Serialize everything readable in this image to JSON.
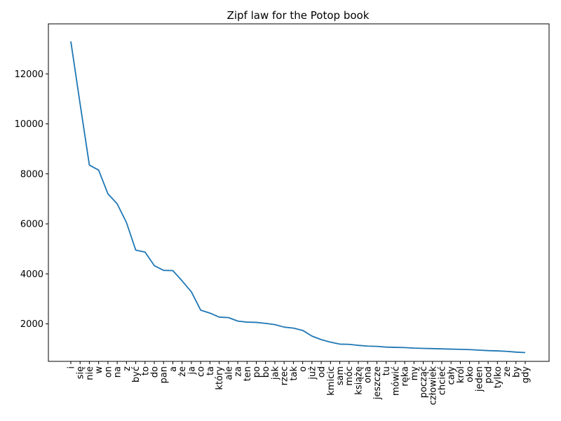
{
  "chart_data": {
    "type": "line",
    "title": "Zipf law for the Potop book",
    "xlabel": "",
    "ylabel": "",
    "categories": [
      "i",
      "się",
      "nie",
      "w",
      "on",
      "na",
      "z",
      "być",
      "to",
      "do",
      "pan",
      "a",
      "że",
      "ja",
      "co",
      "ta",
      "który",
      "ale",
      "za",
      "ten",
      "po",
      "bo",
      "jak",
      "rzec",
      "tak",
      "o",
      "już",
      "od",
      "kmicic",
      "sam",
      "móc",
      "książę",
      "ona",
      "jeszcze",
      "tu",
      "mówić",
      "ręka",
      "my",
      "począć",
      "człowiek",
      "chcieć",
      "cały",
      "król",
      "oko",
      "jeden",
      "pod",
      "tylko",
      "ze",
      "by",
      "gdy"
    ],
    "values": [
      13300,
      10800,
      8350,
      8150,
      7200,
      6800,
      6050,
      4950,
      4870,
      4330,
      4140,
      4130,
      3720,
      3280,
      2550,
      2430,
      2270,
      2250,
      2110,
      2070,
      2060,
      2020,
      1970,
      1870,
      1830,
      1740,
      1510,
      1370,
      1270,
      1190,
      1180,
      1140,
      1110,
      1100,
      1070,
      1060,
      1050,
      1030,
      1020,
      1010,
      1000,
      990,
      980,
      970,
      950,
      930,
      920,
      900,
      870,
      850
    ],
    "yticks": [
      2000,
      4000,
      6000,
      8000,
      10000,
      12000
    ],
    "ylim": [
      500,
      14000
    ],
    "grid": false,
    "legend": "none",
    "line_color": "#1f77b4"
  }
}
